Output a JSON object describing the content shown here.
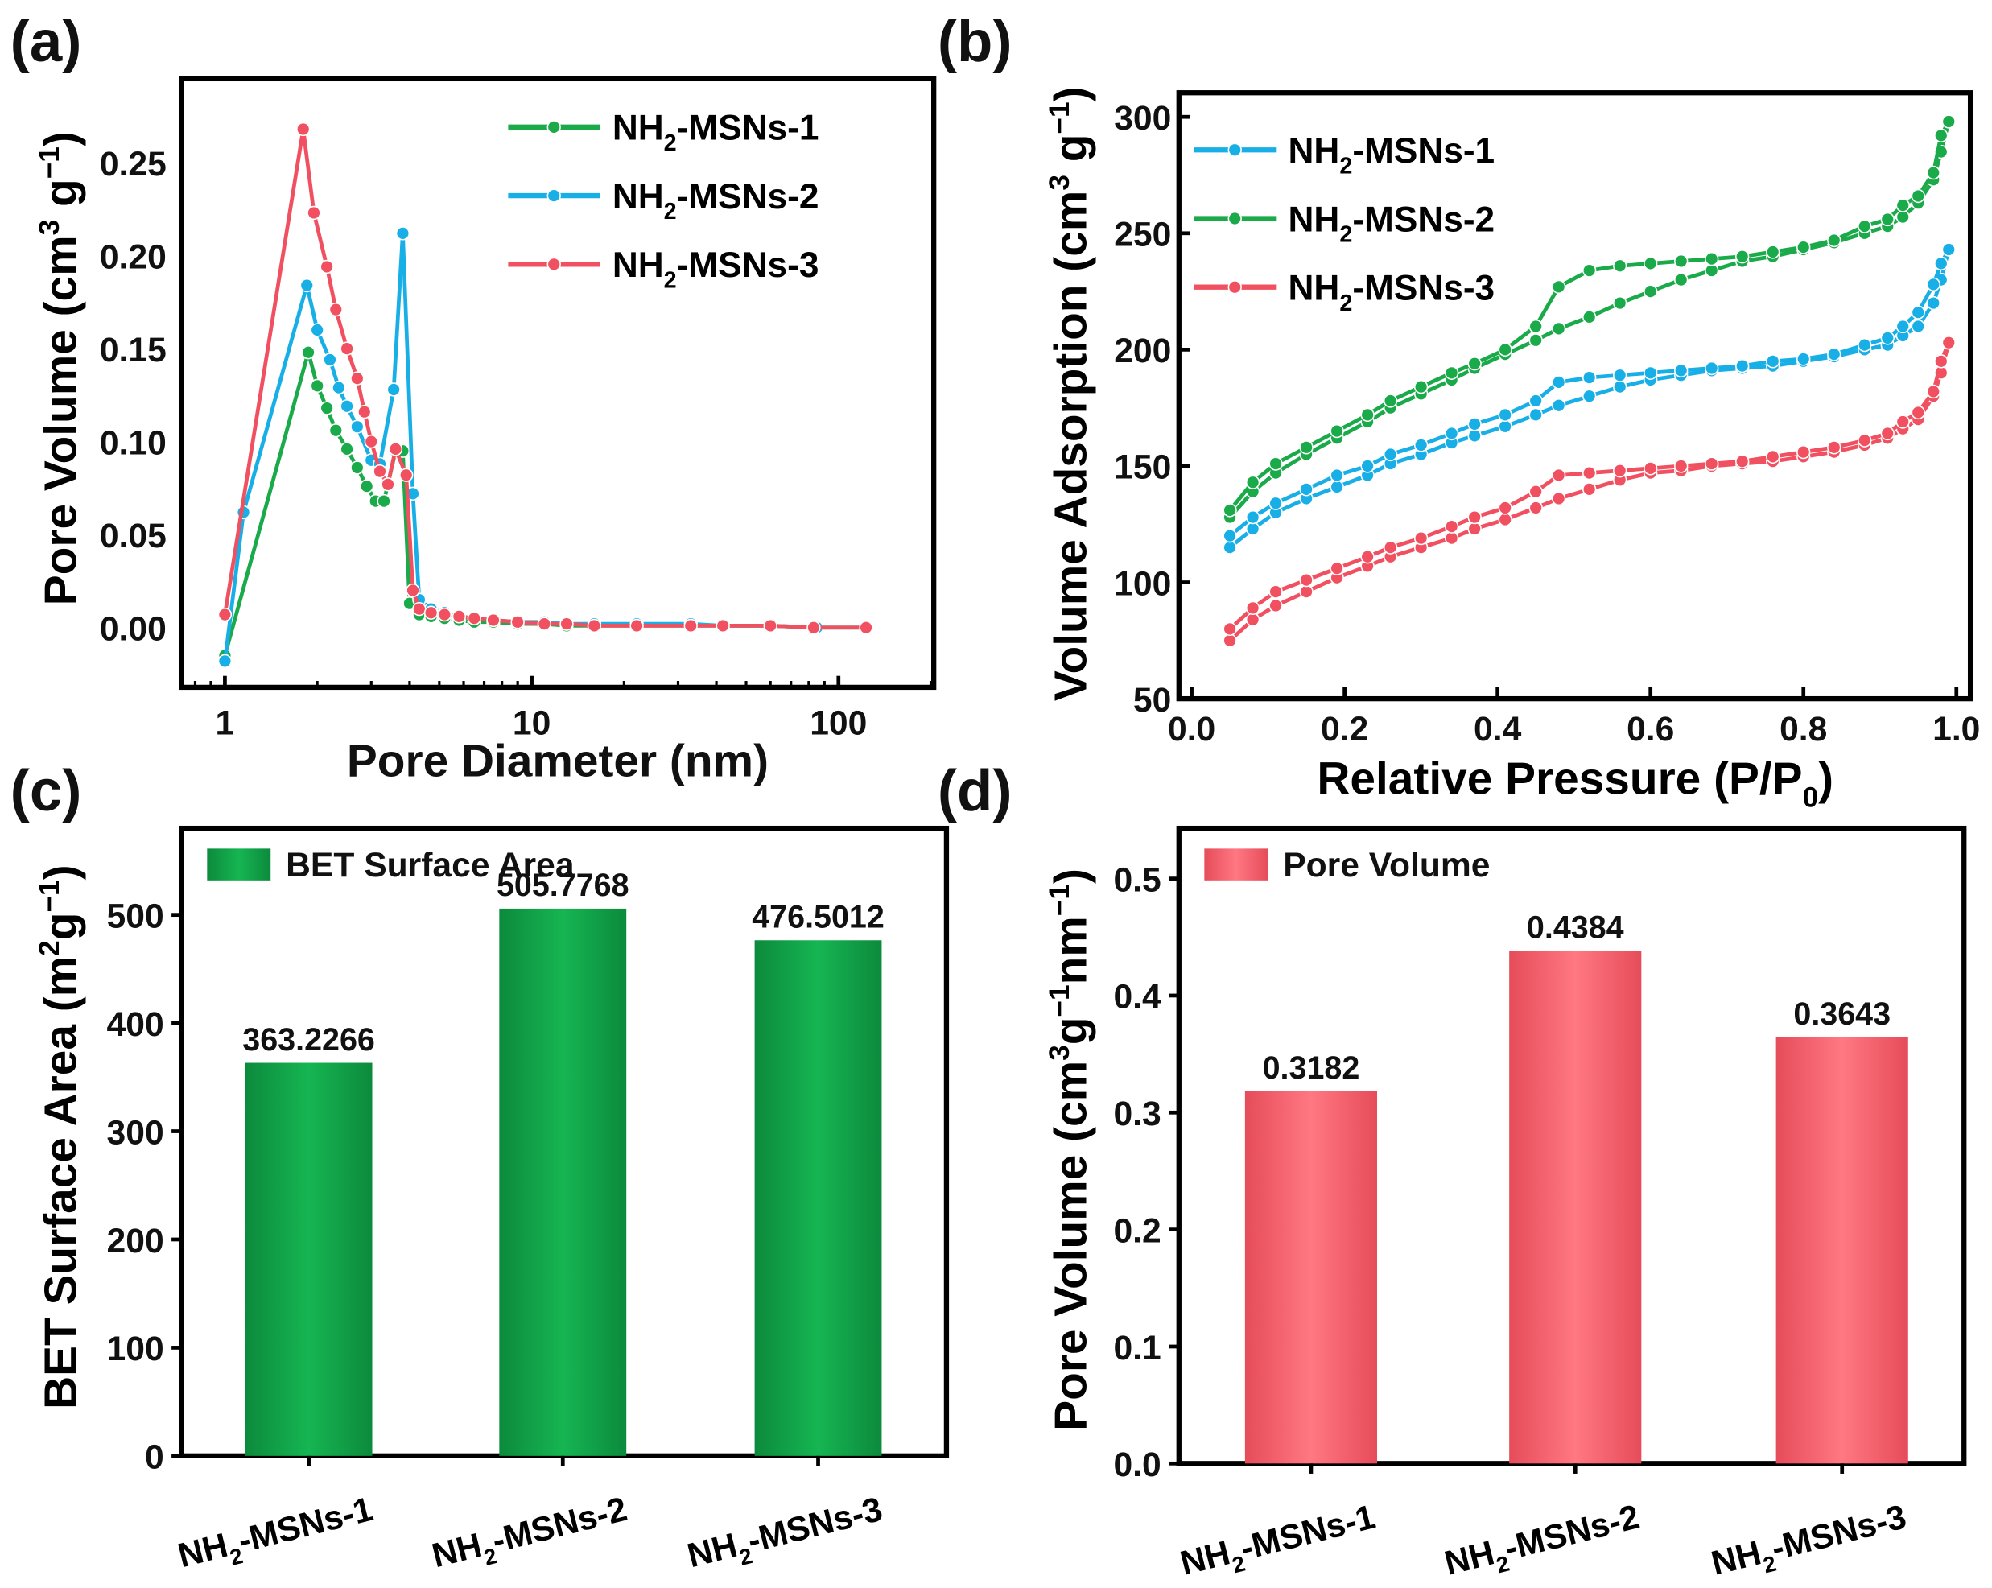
{
  "chart_data": [
    {
      "panel": "(a)",
      "type": "line",
      "xlabel": "Pore Diameter (nm)",
      "ylabel": "Pore Volume (cm3 g-1)",
      "ylabel_parts": {
        "main": "Pore Volume (cm",
        "sup1": "3",
        "mid": " g",
        "sup2": "−1",
        "end": ")"
      },
      "xscale": "log",
      "xlim": [
        0.72,
        200
      ],
      "ylim": [
        -0.032,
        0.29
      ],
      "xticks": [
        "1",
        "10",
        "100"
      ],
      "xtick_values": [
        1,
        10,
        100
      ],
      "yticks": [
        "0.00",
        "0.05",
        "0.10",
        "0.15",
        "0.20",
        "0.25"
      ],
      "ytick_values": [
        0,
        0.05,
        0.1,
        0.15,
        0.2,
        0.25
      ],
      "legend": "top-right",
      "series": [
        {
          "name": "NH2-MSNs-1",
          "color": "#1aaa4a",
          "x": [
            1,
            1.87,
            2.0,
            2.15,
            2.3,
            2.5,
            2.7,
            2.9,
            3.1,
            3.3,
            3.6,
            3.8,
            4.0,
            4.3,
            4.7,
            5.2,
            5.8,
            6.5,
            7.5,
            9,
            11,
            13,
            16,
            22,
            33,
            42,
            60,
            83,
            122
          ],
          "y": [
            -0.015,
            0.148,
            0.13,
            0.118,
            0.106,
            0.096,
            0.086,
            0.076,
            0.068,
            0.068,
            0.095,
            0.095,
            0.013,
            0.007,
            0.006,
            0.005,
            0.004,
            0.003,
            0.003,
            0.002,
            0.002,
            0.001,
            0.001,
            0.001,
            0.001,
            0.001,
            0.001,
            0.0,
            0.0
          ]
        },
        {
          "name": "NH2-MSNs-2",
          "color": "#18aee6",
          "x": [
            1,
            1.15,
            1.85,
            2.0,
            2.2,
            2.35,
            2.5,
            2.7,
            3.0,
            3.2,
            3.55,
            3.8,
            4.1,
            4.3,
            4.7,
            5.2,
            5.8,
            6.5,
            7.5,
            9,
            11,
            13,
            16,
            22,
            33,
            42,
            60,
            85,
            123
          ],
          "y": [
            -0.018,
            0.062,
            0.184,
            0.16,
            0.144,
            0.129,
            0.119,
            0.108,
            0.09,
            0.088,
            0.128,
            0.212,
            0.072,
            0.015,
            0.01,
            0.008,
            0.006,
            0.005,
            0.004,
            0.003,
            0.003,
            0.002,
            0.002,
            0.002,
            0.002,
            0.001,
            0.001,
            0.0,
            0.0
          ]
        },
        {
          "name": "NH2-MSNs-3",
          "color": "#f0505f",
          "x": [
            1,
            1.8,
            1.95,
            2.15,
            2.3,
            2.5,
            2.7,
            2.85,
            3.0,
            3.2,
            3.4,
            3.6,
            3.9,
            4.1,
            4.3,
            4.7,
            5.2,
            5.8,
            6.5,
            7.5,
            9,
            11,
            13,
            16,
            22,
            33,
            42,
            60,
            83,
            123
          ],
          "y": [
            0.007,
            0.268,
            0.223,
            0.194,
            0.171,
            0.15,
            0.134,
            0.116,
            0.1,
            0.084,
            0.077,
            0.096,
            0.082,
            0.02,
            0.01,
            0.008,
            0.007,
            0.006,
            0.005,
            0.004,
            0.003,
            0.002,
            0.002,
            0.001,
            0.001,
            0.001,
            0.001,
            0.001,
            0.0,
            0.0
          ]
        }
      ]
    },
    {
      "panel": "(b)",
      "type": "line",
      "xlabel_parts": {
        "main": "Relative Pressure (P/P",
        "sub": "0",
        "end": ")"
      },
      "ylabel_parts": {
        "main": "Volume Adsorption (cm",
        "sup1": "3",
        "mid": " g",
        "sup2": "−1",
        "end": ")"
      },
      "xlim": [
        -0.02,
        1.0
      ],
      "ylim": [
        50,
        310
      ],
      "xticks": [
        "0.0",
        "0.2",
        "0.4",
        "0.6",
        "0.8",
        "1.0"
      ],
      "xtick_values": [
        0,
        0.2,
        0.4,
        0.6,
        0.8,
        1.0
      ],
      "yticks": [
        "50",
        "100",
        "150",
        "200",
        "250",
        "300"
      ],
      "ytick_values": [
        50,
        100,
        150,
        200,
        250,
        300
      ],
      "legend": "top-left",
      "x": [
        0.05,
        0.08,
        0.11,
        0.15,
        0.19,
        0.23,
        0.26,
        0.3,
        0.34,
        0.37,
        0.41,
        0.45,
        0.48,
        0.52,
        0.56,
        0.6,
        0.64,
        0.68,
        0.72,
        0.76,
        0.8,
        0.84,
        0.88,
        0.91,
        0.93,
        0.95,
        0.97,
        0.98,
        0.99
      ],
      "series": [
        {
          "name": "NH2-MSNs-1",
          "color": "#18aee6",
          "adsorption": [
            115,
            123,
            130,
            136,
            141,
            146,
            151,
            155,
            160,
            163,
            167,
            172,
            176,
            180,
            184,
            187,
            189,
            191,
            192,
            193,
            195,
            197,
            200,
            202,
            206,
            210,
            220,
            230,
            243
          ],
          "desorption": [
            120,
            128,
            134,
            140,
            146,
            150,
            155,
            159,
            164,
            168,
            172,
            178,
            186,
            188,
            189,
            190,
            191,
            192,
            193,
            195,
            196,
            198,
            202,
            205,
            210,
            216,
            228,
            237,
            243
          ]
        },
        {
          "name": "NH2-MSNs-2",
          "color": "#1aaa4a",
          "adsorption": [
            128,
            139,
            147,
            155,
            162,
            169,
            175,
            181,
            187,
            192,
            198,
            204,
            209,
            214,
            220,
            225,
            230,
            234,
            238,
            240,
            243,
            246,
            250,
            253,
            257,
            263,
            273,
            285,
            298
          ],
          "desorption": [
            131,
            143,
            151,
            158,
            165,
            172,
            178,
            184,
            190,
            194,
            200,
            210,
            227,
            234,
            236,
            237,
            238,
            239,
            240,
            242,
            244,
            247,
            253,
            256,
            262,
            266,
            276,
            292,
            298
          ]
        },
        {
          "name": "NH2-MSNs-3",
          "color": "#f0505f",
          "adsorption": [
            75,
            84,
            90,
            96,
            102,
            107,
            111,
            115,
            119,
            123,
            127,
            132,
            136,
            140,
            144,
            147,
            148,
            150,
            151,
            152,
            154,
            156,
            159,
            162,
            166,
            170,
            180,
            190,
            203
          ],
          "desorption": [
            80,
            89,
            96,
            101,
            106,
            111,
            115,
            119,
            124,
            128,
            132,
            139,
            146,
            147,
            148,
            149,
            150,
            151,
            152,
            154,
            156,
            158,
            161,
            164,
            169,
            173,
            182,
            195,
            203
          ]
        }
      ]
    },
    {
      "panel": "(c)",
      "type": "bar",
      "categories": [
        "NH2-MSNs-1",
        "NH2-MSNs-2",
        "NH2-MSNs-3"
      ],
      "values": [
        363.2266,
        505.7768,
        476.5012
      ],
      "data_labels": [
        "363.2266",
        "505.7768",
        "476.5012"
      ],
      "series_name": "BET Surface Area",
      "color": "#12a84a",
      "ylabel_parts": {
        "main": "BET Surface Area (m",
        "sup1": "2",
        "mid": "g",
        "sup2": "−1",
        "end": ")"
      },
      "ylim": [
        0,
        580
      ],
      "yticks": [
        "0",
        "100",
        "200",
        "300",
        "400",
        "500"
      ],
      "ytick_values": [
        0,
        100,
        200,
        300,
        400,
        500
      ],
      "legend": "top-left"
    },
    {
      "panel": "(d)",
      "type": "bar",
      "categories": [
        "NH2-MSNs-1",
        "NH2-MSNs-2",
        "NH2-MSNs-3"
      ],
      "values": [
        0.3182,
        0.4384,
        0.3643
      ],
      "data_labels": [
        "0.3182",
        "0.4384",
        "0.3643"
      ],
      "series_name": "Pore Volume",
      "color": "#f2626e",
      "ylabel_parts": {
        "main": "Pore Volume (cm",
        "sup1": "3",
        "mid": "g",
        "sup2": "−1",
        "mid2": "nm",
        "sup3": "−1",
        "end": ")"
      },
      "ylim": [
        0,
        0.543
      ],
      "yticks": [
        "0.0",
        "0.1",
        "0.2",
        "0.3",
        "0.4",
        "0.5"
      ],
      "ytick_values": [
        0,
        0.1,
        0.2,
        0.3,
        0.4,
        0.5
      ],
      "legend": "top-left"
    }
  ],
  "panels": {
    "a": "(a)",
    "b": "(b)",
    "c": "(c)",
    "d": "(d)"
  },
  "cat_parts": [
    {
      "pre": "NH",
      "sub": "2",
      "post": "-MSNs-1"
    },
    {
      "pre": "NH",
      "sub": "2",
      "post": "-MSNs-2"
    },
    {
      "pre": "NH",
      "sub": "2",
      "post": "-MSNs-3"
    }
  ]
}
